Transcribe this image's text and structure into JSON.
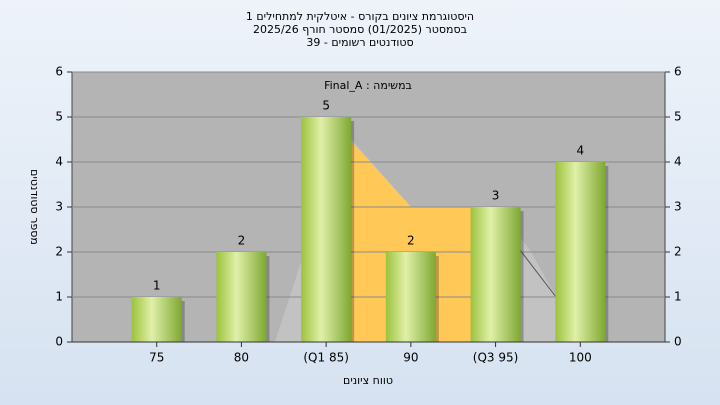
{
  "chart_data": {
    "type": "bar",
    "title": [
      "היסטוגרמת ציונים בקורס - איטלקית למתחילים 1",
      "בסמסטר  (01/2025)  סמסטר חורף 2025/26",
      "סטודנטים רשומים - 39"
    ],
    "annotation": "במשימה : Final_A",
    "x_label": "טווח ציונים",
    "y_label": "מספר סטודנטים",
    "categories": [
      "75",
      "80",
      "(Q1 85)",
      "90",
      "(Q3 95)",
      "100"
    ],
    "values": [
      1,
      2,
      5,
      2,
      3,
      4
    ],
    "ylim": [
      0,
      6
    ],
    "yticks": [
      0,
      1,
      2,
      3,
      4,
      5,
      6
    ],
    "y2lim": [
      0,
      6
    ],
    "y2ticks": [
      0,
      1,
      2,
      3,
      4,
      5,
      6
    ],
    "grid": true
  }
}
